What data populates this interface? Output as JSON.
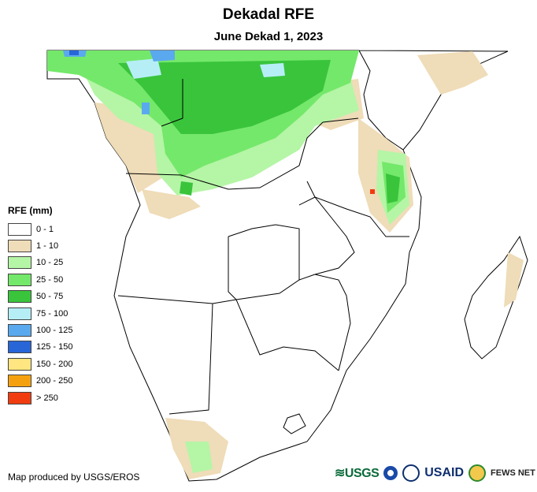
{
  "title": "Dekadal RFE",
  "subtitle": "June Dekad 1, 2023",
  "legend": {
    "title": "RFE (mm)",
    "items": [
      {
        "label": "0 - 1",
        "color": "#ffffff"
      },
      {
        "label": "1 - 10",
        "color": "#efdcb8"
      },
      {
        "label": "10 - 25",
        "color": "#b5f5a6"
      },
      {
        "label": "25 - 50",
        "color": "#74e86a"
      },
      {
        "label": "50 - 75",
        "color": "#39c43c"
      },
      {
        "label": "75 - 100",
        "color": "#b6eef6"
      },
      {
        "label": "100 - 125",
        "color": "#5aa9ee"
      },
      {
        "label": "125 - 150",
        "color": "#2866d8"
      },
      {
        "label": "150 - 200",
        "color": "#ffe680"
      },
      {
        "label": "200 - 250",
        "color": "#f5a10f"
      },
      {
        "label": "> 250",
        "color": "#f03c10"
      }
    ]
  },
  "credit": "Map produced by USGS/EROS",
  "logos": {
    "usgs": "≋USGS",
    "usaid": "USAID",
    "fews": "FEWS NET"
  }
}
